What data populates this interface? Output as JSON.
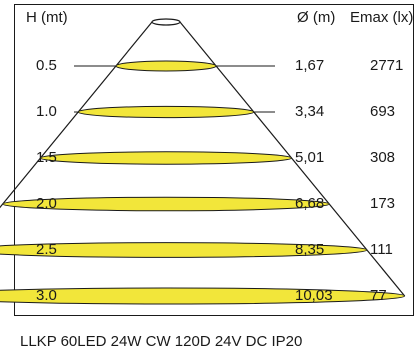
{
  "header": {
    "height_label": "H (mt)",
    "diameter_label": "Ø (m)",
    "emax_label": "Emax (lx)"
  },
  "rows": [
    {
      "h": "0.5",
      "d": "1,67",
      "e": "2771"
    },
    {
      "h": "1.0",
      "d": "3,34",
      "e": "693"
    },
    {
      "h": "1.5",
      "d": "5,01",
      "e": "308"
    },
    {
      "h": "2.0",
      "d": "6,68",
      "e": "173"
    },
    {
      "h": "2.5",
      "d": "8,35",
      "e": "111"
    },
    {
      "h": "3.0",
      "d": "10,03",
      "e": "77"
    }
  ],
  "caption": "LLKP 60LED 24W  CW 120D 24V DC IP20",
  "colors": {
    "beam_fill": "#f2e63a",
    "line": "#1a1a1a",
    "background": "#ffffff"
  }
}
